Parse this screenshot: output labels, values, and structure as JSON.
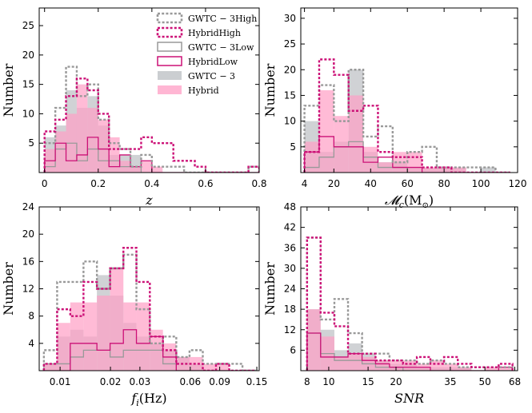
{
  "legend": {
    "entries": [
      {
        "key": "gwtc_high",
        "label": "GWTC − 3High"
      },
      {
        "key": "hybrid_high",
        "label": "HybridHigh"
      },
      {
        "key": "gwtc_low",
        "label": "GWTC − 3Low"
      },
      {
        "key": "hybrid_low",
        "label": "HybridLow"
      },
      {
        "key": "gwtc",
        "label": "GWTC − 3"
      },
      {
        "key": "hybrid",
        "label": "Hybrid"
      }
    ]
  },
  "colors": {
    "gwtc_line": "#999999",
    "hybrid_line": "#cc1177",
    "gwtc_fill": "#a9adb2",
    "hybrid_fill": "#ff9ec4"
  },
  "chart_data": [
    {
      "type": "histogram",
      "panel": "z",
      "xlabel_main": "z",
      "xlabel_sub": "",
      "xlabel_unit": "",
      "ylabel": "Number",
      "xlim": [
        -0.02,
        0.8
      ],
      "ylim": [
        0,
        28
      ],
      "xticks": [
        0,
        0.2,
        0.4,
        0.6,
        0.8
      ],
      "xtick_labels": [
        "0",
        "0.2",
        "0.4",
        "0.6",
        "0.8"
      ],
      "yticks": [
        5,
        10,
        15,
        20,
        25
      ],
      "ytick_labels": [
        "5",
        "10",
        "15",
        "20",
        "25"
      ],
      "edges": [
        0,
        0.04,
        0.08,
        0.12,
        0.16,
        0.2,
        0.24,
        0.28,
        0.32,
        0.36,
        0.4,
        0.44,
        0.48,
        0.52,
        0.56,
        0.6,
        0.64,
        0.68,
        0.72,
        0.76,
        0.8
      ],
      "series": [
        {
          "key": "gwtc",
          "values": [
            6,
            8,
            14,
            11,
            13,
            8,
            3,
            3,
            3,
            0,
            0,
            0,
            0,
            0,
            0,
            0,
            0,
            0,
            0,
            0
          ]
        },
        {
          "key": "hybrid",
          "values": [
            4,
            7,
            10,
            15,
            11,
            9,
            6,
            2,
            1,
            2,
            1,
            0,
            0,
            0,
            0,
            0,
            0,
            0,
            0,
            0
          ]
        },
        {
          "key": "gwtc_low",
          "values": [
            1,
            4,
            5,
            2,
            4,
            2,
            2,
            1,
            1,
            0,
            0,
            0,
            0,
            0,
            0,
            0,
            0,
            0,
            0,
            0
          ]
        },
        {
          "key": "hybrid_low",
          "values": [
            2,
            5,
            2,
            3,
            6,
            4,
            1,
            3,
            1,
            2,
            0,
            0,
            0,
            0,
            0,
            0,
            0,
            0,
            0,
            0
          ]
        },
        {
          "key": "gwtc_high",
          "values": [
            5,
            11,
            18,
            13,
            15,
            9,
            5,
            4,
            1,
            3,
            1,
            1,
            1,
            0,
            0,
            0,
            0,
            0,
            0,
            1
          ]
        },
        {
          "key": "hybrid_high",
          "values": [
            7,
            9,
            13,
            16,
            14,
            10,
            4,
            4,
            4,
            6,
            5,
            5,
            2,
            2,
            1,
            0,
            0,
            0,
            0,
            1
          ]
        }
      ]
    },
    {
      "type": "histogram",
      "panel": "chirp-mass",
      "xlabel_main": "𝓜",
      "xlabel_sub": "c",
      "xlabel_unit": "(M",
      "xlabel_sun": "⊙",
      "ylim": [
        0,
        32
      ],
      "ylabel": "Number",
      "xlim": [
        2,
        120
      ],
      "xticks": [
        4,
        20,
        40,
        60,
        80,
        100,
        120
      ],
      "xtick_labels": [
        "4",
        "20",
        "40",
        "60",
        "80",
        "100",
        "120"
      ],
      "yticks": [
        5,
        10,
        15,
        20,
        25,
        30
      ],
      "ytick_labels": [
        "5",
        "10",
        "15",
        "20",
        "25",
        "30"
      ],
      "edges": [
        4,
        12,
        20,
        28,
        36,
        44,
        52,
        60,
        68,
        76,
        84,
        92,
        100,
        108,
        116
      ],
      "series": [
        {
          "key": "gwtc",
          "values": [
            10,
            4,
            6,
            20,
            4,
            2,
            2,
            1,
            1,
            1,
            1,
            0,
            1,
            0
          ]
        },
        {
          "key": "hybrid",
          "values": [
            6,
            16,
            11,
            15,
            5,
            2,
            4,
            4,
            1,
            1,
            1,
            0,
            0,
            0
          ]
        },
        {
          "key": "gwtc_low",
          "values": [
            1,
            3,
            5,
            6,
            3,
            1,
            1,
            0,
            0,
            0,
            0,
            0,
            0,
            0
          ]
        },
        {
          "key": "hybrid_low",
          "values": [
            4,
            7,
            5,
            5,
            2,
            3,
            1,
            1,
            0,
            0,
            0,
            0,
            0,
            0
          ]
        },
        {
          "key": "gwtc_high",
          "values": [
            13,
            17,
            10,
            20,
            7,
            9,
            2,
            4,
            5,
            1,
            1,
            1,
            1,
            0
          ]
        },
        {
          "key": "hybrid_high",
          "values": [
            4,
            22,
            19,
            12,
            13,
            4,
            3,
            3,
            1,
            1,
            0,
            0,
            0,
            0
          ]
        }
      ]
    },
    {
      "type": "histogram",
      "panel": "frequency",
      "xlabel_main": "f",
      "xlabel_sub": "i",
      "xlabel_unit": "(Hz)",
      "ylabel": "Number",
      "xscale": "log",
      "xlim": [
        0.0075,
        0.155
      ],
      "ylim": [
        0,
        24
      ],
      "xticks": [
        0.01,
        0.02,
        0.03,
        0.06,
        0.09,
        0.15
      ],
      "xtick_labels": [
        "0.01",
        "0.02",
        "0.03",
        "0.06",
        "0.09",
        "0.15"
      ],
      "yticks": [
        4,
        8,
        12,
        16,
        20,
        24
      ],
      "ytick_labels": [
        "4",
        "8",
        "12",
        "16",
        "20",
        "24"
      ],
      "edges": [
        0.008,
        0.0096,
        0.0115,
        0.0138,
        0.0166,
        0.0199,
        0.0239,
        0.0286,
        0.0344,
        0.0412,
        0.0495,
        0.0594,
        0.0713,
        0.0855,
        0.1026,
        0.1231,
        0.148
      ],
      "series": [
        {
          "key": "gwtc",
          "values": [
            1,
            5,
            6,
            5,
            14,
            11,
            7,
            5,
            4,
            3,
            2,
            1,
            0,
            0,
            0,
            0
          ]
        },
        {
          "key": "hybrid",
          "values": [
            1,
            7,
            10,
            10,
            11,
            15,
            10,
            10,
            6,
            4,
            2,
            2,
            1,
            1,
            0,
            0
          ]
        },
        {
          "key": "gwtc_low",
          "values": [
            1,
            1,
            2,
            3,
            3,
            2,
            3,
            3,
            3,
            1,
            0,
            0,
            0,
            0,
            0,
            0
          ]
        },
        {
          "key": "hybrid_low",
          "values": [
            0,
            0,
            4,
            4,
            3,
            4,
            6,
            4,
            5,
            2,
            0,
            0,
            0,
            0,
            0,
            0
          ]
        },
        {
          "key": "gwtc_high",
          "values": [
            3,
            13,
            13,
            16,
            12,
            15,
            17,
            9,
            4,
            5,
            2,
            3,
            1,
            1,
            1,
            0
          ]
        },
        {
          "key": "hybrid_high",
          "values": [
            1,
            9,
            8,
            13,
            12,
            15,
            18,
            13,
            5,
            3,
            1,
            1,
            0,
            1,
            0,
            0
          ]
        }
      ]
    },
    {
      "type": "histogram",
      "panel": "snr",
      "xlabel_main": "SNR",
      "xlabel_sub": "",
      "xlabel_unit": "",
      "ylabel": "Number",
      "xscale": "log",
      "xlim": [
        7.5,
        70
      ],
      "ylim": [
        0,
        48
      ],
      "xticks": [
        8,
        10,
        15,
        20,
        35,
        50,
        68
      ],
      "xtick_labels": [
        "8",
        "10",
        "15",
        "20",
        "35",
        "50",
        "68"
      ],
      "yticks": [
        6,
        12,
        18,
        24,
        30,
        36,
        42,
        48
      ],
      "ytick_labels": [
        "6",
        "12",
        "18",
        "24",
        "30",
        "36",
        "42",
        "48"
      ],
      "edges": [
        8,
        9.2,
        10.6,
        12.2,
        14.1,
        16.2,
        18.7,
        21.5,
        24.8,
        28.5,
        32.8,
        37.8,
        43.5,
        50.1,
        57.6,
        66.4
      ],
      "series": [
        {
          "key": "gwtc",
          "values": [
            18,
            12,
            6,
            8,
            5,
            3,
            2,
            2,
            1,
            1,
            1,
            1,
            0,
            0,
            0
          ]
        },
        {
          "key": "hybrid",
          "values": [
            18,
            10,
            4,
            5,
            4,
            3,
            3,
            3,
            2,
            3,
            2,
            1,
            0,
            1,
            1
          ]
        },
        {
          "key": "gwtc_low",
          "values": [
            11,
            5,
            3,
            3,
            2,
            1,
            1,
            0,
            0,
            0,
            0,
            0,
            0,
            0,
            0
          ]
        },
        {
          "key": "hybrid_low",
          "values": [
            11,
            4,
            4,
            5,
            3,
            2,
            1,
            1,
            1,
            0,
            0,
            0,
            0,
            0,
            1
          ]
        },
        {
          "key": "gwtc_high",
          "values": [
            39,
            15,
            21,
            11,
            5,
            5,
            3,
            3,
            2,
            3,
            2,
            1,
            1,
            1,
            1
          ]
        },
        {
          "key": "hybrid_high",
          "values": [
            39,
            17,
            13,
            5,
            5,
            3,
            3,
            2,
            4,
            2,
            4,
            2,
            1,
            1,
            2
          ]
        }
      ]
    }
  ]
}
